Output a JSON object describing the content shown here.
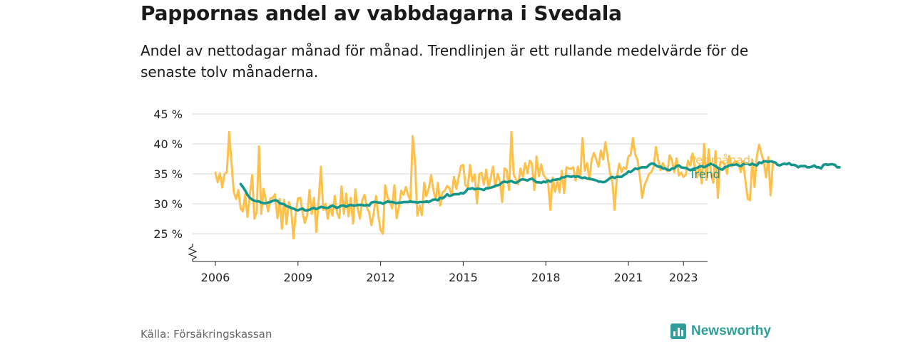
{
  "header": {
    "title": "Pappornas andel av vabbdagarna i Svedala",
    "subtitle": "Andel av nettodagar månad för månad. Trendlinjen är ett rullande medelvärde för de senaste tolv månaderna."
  },
  "footer": {
    "source": "Källa: Försäkringskassan",
    "brand": "Newsworthy"
  },
  "colors": {
    "monthly": "#FDC04B",
    "trend": "#15968B",
    "grid": "#D9D9D9",
    "axis": "#222222"
  },
  "chart_data": {
    "type": "line",
    "title": "Pappornas andel av vabbdagarna i Svedala",
    "subtitle": "Andel av nettodagar månad för månad. Trendlinjen är ett rullande medelvärde för de senaste tolv månaderna.",
    "ylim": [
      22,
      45
    ],
    "y_ticks": [
      25,
      30,
      35,
      40,
      45
    ],
    "y_tick_labels": [
      "25 %",
      "30 %",
      "35 %",
      "40 %",
      "45 %"
    ],
    "x_ticks": [
      2006,
      2009,
      2012,
      2015,
      2018,
      2021,
      2023
    ],
    "xlim": [
      2005.58,
      2024.17
    ],
    "grid": true,
    "axis_break": true,
    "legend": "inline at line ends (right)",
    "series": [
      {
        "name": "Per månad",
        "start": "2006-01",
        "values": [
          35.2,
          33.6,
          35.1,
          32.7,
          35,
          35.3,
          42,
          37,
          32,
          30.8,
          32.3,
          29.2,
          28.7,
          31.6,
          27.8,
          31.5,
          34.8,
          27.5,
          28.6,
          39.6,
          28.3,
          32.5,
          30.5,
          28.7,
          30.9,
          31,
          31.6,
          27.6,
          30.8,
          25.8,
          30.7,
          26.6,
          30.3,
          29.3,
          24.2,
          28.5,
          30.9,
          31,
          28.5,
          26.8,
          28.1,
          32.3,
          28.3,
          31,
          25.3,
          30.7,
          36.2,
          29,
          30,
          27.5,
          29.7,
          28,
          31.3,
          28.5,
          27.6,
          32.9,
          28.3,
          31.7,
          27.9,
          31,
          26.7,
          32.4,
          29.3,
          27.5,
          30.6,
          31.5,
          29.4,
          28.6,
          26.4,
          28.5,
          31.3,
          28,
          25.6,
          25,
          33.1,
          31.1,
          30.4,
          29.2,
          33.1,
          27.6,
          29.4,
          32.2,
          31.5,
          32.8,
          31.5,
          30.5,
          41.3,
          36.9,
          28,
          29.7,
          28.1,
          33.5,
          31.3,
          32.6,
          34.8,
          32.3,
          30.7,
          33.5,
          29.7,
          31.9,
          32.2,
          33,
          32.6,
          31.4,
          34.5,
          32.5,
          34.4,
          36.3,
          36.5,
          33.1,
          32.7,
          36.5,
          33.7,
          34.9,
          30.1,
          34.9,
          35.2,
          33.2,
          35.7,
          32.6,
          34.3,
          36.2,
          32.8,
          35,
          33.7,
          30.3,
          35.9,
          35.6,
          32.3,
          42,
          34.9,
          34,
          33.2,
          35.9,
          34.5,
          36.8,
          35.1,
          37.2,
          36.7,
          32.3,
          37.9,
          34.6,
          36.6,
          34.8,
          34.3,
          33.5,
          29,
          34.4,
          32,
          33.9,
          31.9,
          35.5,
          31.8,
          36.1,
          35.9,
          35.8,
          36.1,
          33.9,
          36.2,
          34.4,
          41,
          35.5,
          36.8,
          34,
          37.4,
          38.5,
          37.4,
          36.2,
          38.9,
          37.4,
          40.3,
          37.7,
          35.1,
          33.7,
          29,
          34.5,
          36.7,
          35.3,
          36.1,
          35.8,
          37.9,
          38.2,
          41,
          38.2,
          37.3,
          34.5,
          31,
          33.1,
          34,
          35,
          35.3,
          36.2,
          39.5,
          37.3,
          35.6,
          36.8,
          35.9,
          35.4,
          38.1,
          37.3,
          35.3,
          37.6,
          34.7,
          35.2,
          34.5,
          34.8,
          37.2,
          36.4,
          38.4,
          35.9,
          34.4,
          36.5,
          33.4,
          40,
          34,
          39.1,
          35.2,
          33.5,
          38.8,
          31,
          36.9,
          37,
          36.5,
          35,
          38,
          36.2,
          36.9,
          37.1,
          36.7,
          35.3,
          37.1,
          33.8,
          30.8,
          30.6,
          37.4,
          32.8,
          38,
          39.9,
          38.3,
          37.1,
          34.4,
          37.8,
          31.4,
          37
        ]
      },
      {
        "name": "Trend",
        "start": "2006-12",
        "values": [
          33.3,
          32.8,
          32.2,
          31.5,
          31,
          30.7,
          30.5,
          30.4,
          30.4,
          30.2,
          30.1,
          30.1,
          30.2,
          30.3,
          30.5,
          30.6,
          30.5,
          30.1,
          30,
          29.9,
          29.6,
          29.5,
          29.3,
          29.2,
          29,
          28.9,
          29.1,
          29.2,
          28.9,
          28.9,
          29,
          29.2,
          29.3,
          29.1,
          29.3,
          29.5,
          29.4,
          29.3,
          29.3,
          29.5,
          29.7,
          29.5,
          29.3,
          29.5,
          29.7,
          29.7,
          29.5,
          29.7,
          29.8,
          29.7,
          29.7,
          29.8,
          29.8,
          29.8,
          29.7,
          29.8,
          29.7,
          30.2,
          30.3,
          30.3,
          30.2,
          30.2,
          30,
          30.2,
          30.4,
          30.3,
          30.3,
          30.2,
          30.1,
          30.2,
          30.2,
          30.3,
          30.3,
          30.3,
          30.4,
          30.3,
          30.3,
          30.2,
          30.3,
          30.3,
          30.3,
          30.4,
          30.3,
          30.5,
          30.7,
          30.7,
          30.6,
          31,
          30.9,
          31.2,
          31.6,
          31.3,
          31.4,
          31.6,
          31.6,
          31.6,
          31.8,
          31.7,
          32,
          32.5,
          32.5,
          32.6,
          32.4,
          32.5,
          32.5,
          32.4,
          32.3,
          32.6,
          32.6,
          32.7,
          32.8,
          33,
          33.1,
          33.2,
          33.6,
          33.7,
          33.6,
          33.7,
          33.8,
          33.6,
          33.5,
          33.7,
          34,
          34.1,
          34,
          33.9,
          34.1,
          34.2,
          33.9,
          33.6,
          33.6,
          33.5,
          33.7,
          33.6,
          33.9,
          33.7,
          34,
          34,
          34.1,
          34.1,
          34.4,
          34.4,
          34.6,
          34.6,
          34.5,
          34.6,
          34.5,
          34.6,
          34.4,
          34.3,
          34.4,
          34.2,
          34.2,
          34.1,
          34,
          33.9,
          33.7,
          33.7,
          33.6,
          33.7,
          34,
          34.3,
          34.5,
          34.3,
          34.5,
          34.5,
          34.5,
          34.8,
          35,
          35.4,
          35.3,
          35.6,
          35.9,
          35.8,
          36,
          36.1,
          36.1,
          36.1,
          36.5,
          36.7,
          36.7,
          36.4,
          36.2,
          36.2,
          35.9,
          35.9,
          35.7,
          35.6,
          35.9,
          35.9,
          36.3,
          36.4,
          36.1,
          36,
          36,
          35.8,
          35.6,
          35.8,
          35.9,
          36,
          36.2,
          36.3,
          36.1,
          36.3,
          36.5,
          36.7,
          36.5,
          36.3,
          36,
          35.8,
          35.7,
          36.1,
          36.2,
          36.4,
          36.5,
          36.5,
          36.6,
          36.4,
          36.3,
          36.6,
          36.7,
          36.7,
          36.5,
          36.7,
          36.5,
          36.4,
          36.9,
          36.8,
          37.1,
          37.1,
          37,
          37.1,
          37,
          36.9,
          36.5,
          36.4,
          36.6,
          36.7,
          36.6,
          36.8,
          36.5,
          36.5,
          36.4,
          36.1,
          36.3,
          36.3,
          36.3,
          36.1,
          36.1,
          36.2,
          36.4,
          36.1,
          36.1,
          35.9,
          36.5,
          36.6,
          36.5,
          36.6,
          36.6,
          36.5,
          36.1,
          36.1
        ]
      }
    ]
  }
}
